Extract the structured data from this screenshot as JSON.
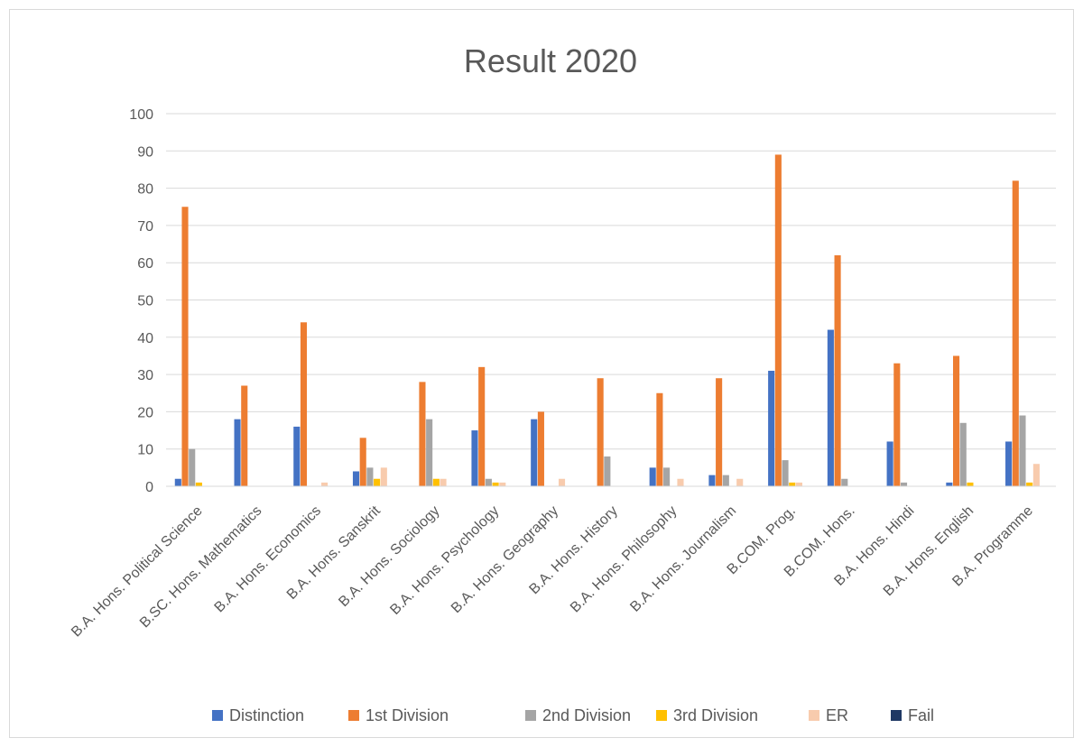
{
  "chart_data": {
    "type": "bar",
    "title": "Result 2020",
    "xlabel": "",
    "ylabel": "",
    "ylim": [
      0,
      100
    ],
    "yticks": [
      0,
      10,
      20,
      30,
      40,
      50,
      60,
      70,
      80,
      90,
      100
    ],
    "grid": true,
    "legend_position": "bottom",
    "categories": [
      "B.A. Hons. Political Science",
      "B.SC. Hons. Mathematics",
      "B.A. Hons. Economics",
      "B.A. Hons. Sanskrit",
      "B.A. Hons. Sociology",
      "B.A. Hons. Psychology",
      "B.A. Hons. Geography",
      "B.A. Hons. History",
      "B.A. Hons. Philosophy",
      "B.A. Hons. Journalism",
      "B.COM. Prog.",
      "B.COM. Hons.",
      "B.A. Hons. Hindi",
      "B.A. Hons. English",
      "B.A. Programme"
    ],
    "series": [
      {
        "name": "Distinction",
        "color": "#4472c4",
        "values": [
          2,
          18,
          16,
          4,
          0,
          15,
          18,
          0,
          5,
          3,
          31,
          42,
          12,
          1,
          12
        ]
      },
      {
        "name": "1st Division",
        "color": "#ed7d31",
        "values": [
          75,
          27,
          44,
          13,
          28,
          32,
          20,
          29,
          25,
          29,
          89,
          62,
          33,
          35,
          82
        ]
      },
      {
        "name": "2nd Division",
        "color": "#a5a5a5",
        "values": [
          10,
          0,
          0,
          5,
          18,
          2,
          0,
          8,
          5,
          3,
          7,
          2,
          1,
          17,
          19
        ]
      },
      {
        "name": "3rd Division",
        "color": "#ffc000",
        "values": [
          1,
          0,
          0,
          2,
          2,
          1,
          0,
          0,
          0,
          0,
          1,
          0,
          0,
          1,
          1
        ]
      },
      {
        "name": "ER",
        "color": "#f8cbad",
        "values": [
          0,
          0,
          1,
          5,
          2,
          1,
          2,
          0,
          2,
          2,
          1,
          0,
          0,
          0,
          6
        ]
      },
      {
        "name": "Fail",
        "color": "#1f3864",
        "values": [
          0,
          0,
          0,
          0,
          0,
          0,
          0,
          0,
          0,
          0,
          0,
          0,
          0,
          0,
          0
        ]
      }
    ]
  }
}
